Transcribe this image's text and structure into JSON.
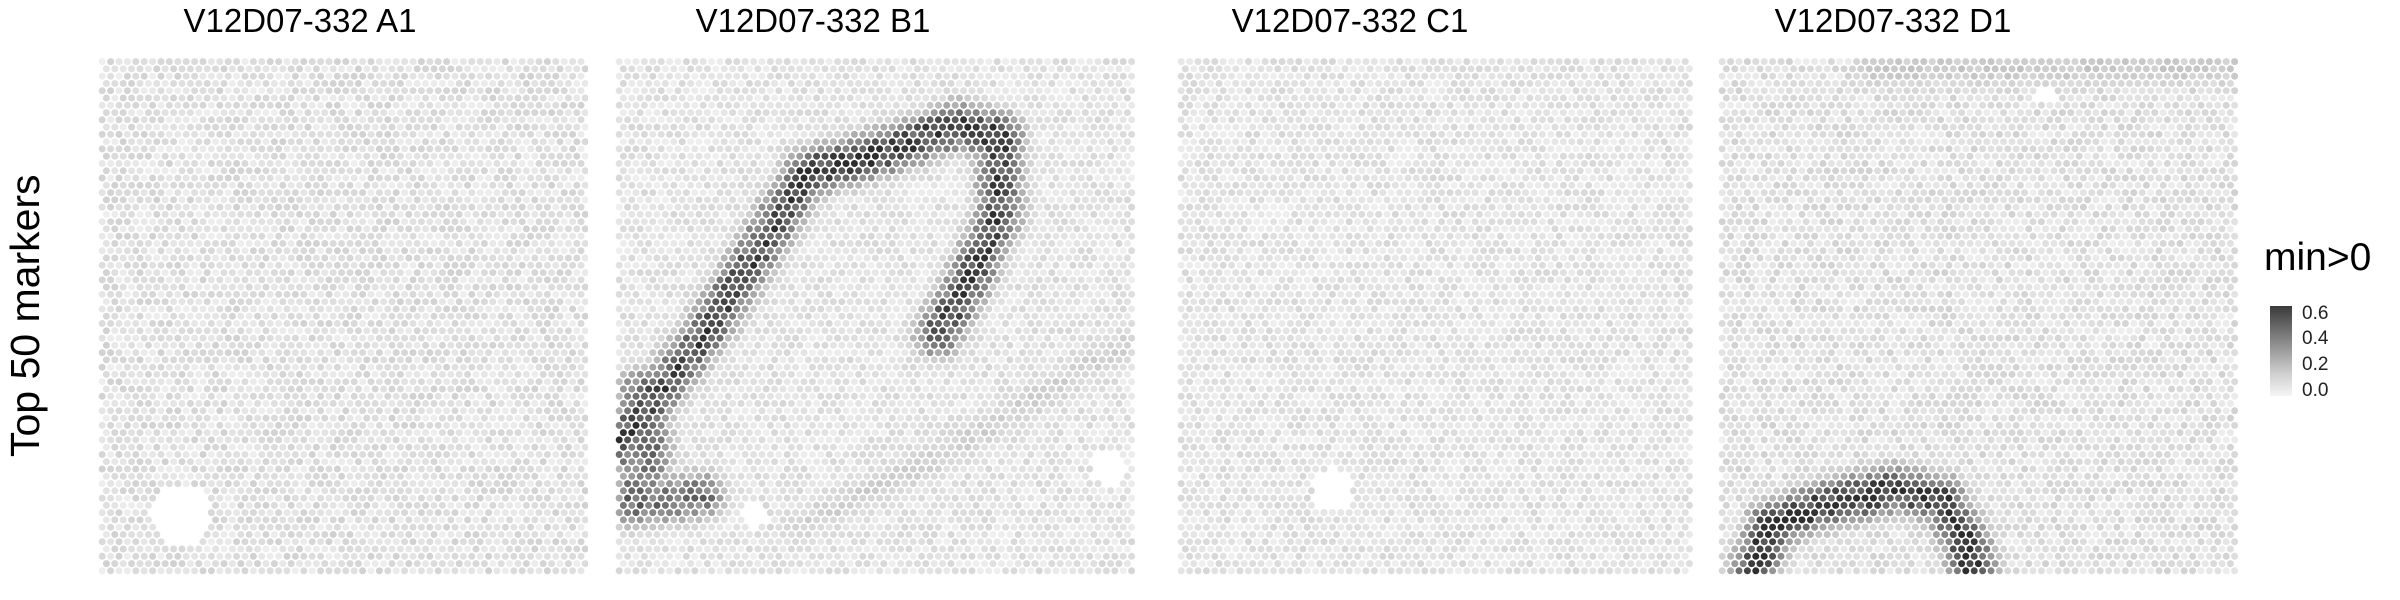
{
  "chart_data": {
    "type": "heatmap",
    "row_label": "Top 50 markers",
    "panels": [
      {
        "title": "V12D07-332  A1",
        "background_level": 0.07,
        "high_regions": [],
        "tissue_holes": [
          {
            "cx": 0.17,
            "cy": 0.88,
            "r": 0.06
          }
        ]
      },
      {
        "title": "V12D07-332  B1",
        "background_level": 0.06,
        "high_regions": [
          {
            "name": "arc-left",
            "value": 0.55,
            "path": [
              [
                0.0,
                0.75
              ],
              [
                0.07,
                0.66
              ],
              [
                0.18,
                0.52
              ],
              [
                0.3,
                0.33
              ],
              [
                0.37,
                0.22
              ]
            ]
          },
          {
            "name": "arc-top",
            "value": 0.6,
            "path": [
              [
                0.37,
                0.22
              ],
              [
                0.52,
                0.18
              ],
              [
                0.66,
                0.13
              ],
              [
                0.74,
                0.15
              ]
            ]
          },
          {
            "name": "arc-right",
            "value": 0.55,
            "path": [
              [
                0.74,
                0.15
              ],
              [
                0.74,
                0.3
              ],
              [
                0.67,
                0.45
              ],
              [
                0.62,
                0.53
              ]
            ]
          },
          {
            "name": "lower-left",
            "value": 0.45,
            "path": [
              [
                0.05,
                0.64
              ],
              [
                0.07,
                0.76
              ],
              [
                0.03,
                0.86
              ],
              [
                0.17,
                0.84
              ]
            ]
          },
          {
            "name": "lower-band",
            "value": 0.12,
            "path": [
              [
                0.35,
                0.9
              ],
              [
                0.6,
                0.78
              ],
              [
                0.85,
                0.63
              ],
              [
                0.98,
                0.55
              ]
            ]
          }
        ],
        "tissue_holes": [
          {
            "cx": 0.27,
            "cy": 0.88,
            "r": 0.025
          },
          {
            "cx": 0.95,
            "cy": 0.79,
            "r": 0.035
          }
        ]
      },
      {
        "title": "V12D07-332  C1",
        "background_level": 0.06,
        "high_regions": [],
        "tissue_holes": [
          {
            "cx": 0.3,
            "cy": 0.83,
            "r": 0.04
          }
        ]
      },
      {
        "title": "V12D07-332  D1",
        "background_level": 0.07,
        "high_regions": [
          {
            "name": "top-band",
            "value": 0.14,
            "path": [
              [
                0.3,
                0.02
              ],
              [
                0.6,
                0.02
              ],
              [
                0.98,
                0.02
              ]
            ]
          },
          {
            "name": "bottom-arc",
            "value": 0.62,
            "path": [
              [
                0.07,
                0.98
              ],
              [
                0.1,
                0.9
              ],
              [
                0.2,
                0.86
              ],
              [
                0.34,
                0.83
              ],
              [
                0.43,
                0.85
              ],
              [
                0.47,
                0.92
              ],
              [
                0.49,
                0.98
              ]
            ]
          }
        ],
        "tissue_holes": [
          {
            "cx": 0.63,
            "cy": 0.07,
            "r": 0.02
          }
        ]
      }
    ],
    "legend": {
      "title": "min>0",
      "ticks": [
        "0.6",
        "0.4",
        "0.2",
        "0.0"
      ],
      "color_low": "#f5f5f5",
      "color_high": "#2a2a2a"
    }
  }
}
